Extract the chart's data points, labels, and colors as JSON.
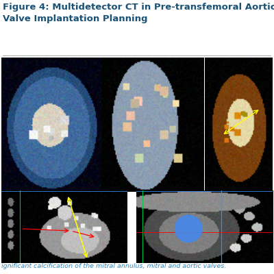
{
  "title": "Figure 4: Multidetector CT in Pre-transfemoral Aortic\nValve Implantation Planning",
  "title_color": "#1a5276",
  "title_fontsize": 9.5,
  "caption": "ignificant calcification of the mitral annulus, mitral and aortic valves.",
  "caption_color": "#2e86c1",
  "caption_fontsize": 6.8,
  "background_color": "#ffffff",
  "divider_color": "#aaaaaa",
  "fig_width": 4.0,
  "fig_height": 4.0,
  "fig_dpi": 100
}
